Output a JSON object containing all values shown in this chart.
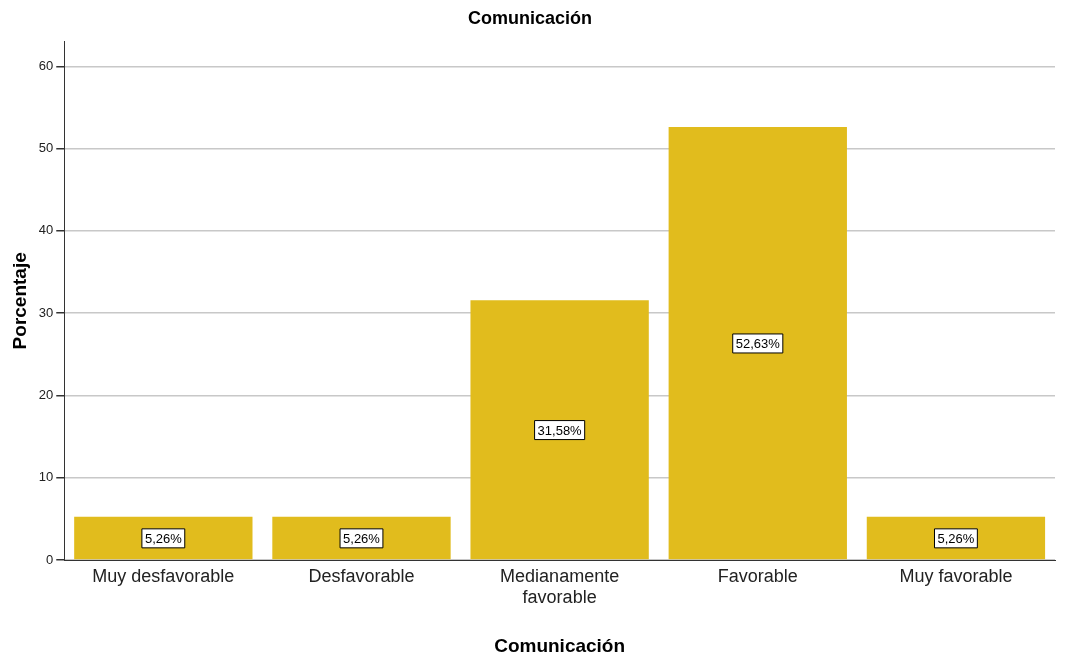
{
  "chart_data": {
    "type": "bar",
    "title": "Comunicación",
    "xlabel": "Comunicación",
    "ylabel": "Porcentaje",
    "categories": [
      "Muy desfavorable",
      "Desfavorable",
      "Medianamente favorable",
      "Favorable",
      "Muy favorable"
    ],
    "values": [
      5.26,
      5.26,
      31.58,
      52.63,
      5.26
    ],
    "value_labels": [
      "5,26%",
      "5,26%",
      "31,58%",
      "52,63%",
      "5,26%"
    ],
    "color": "#e1bc1d",
    "ylim": [
      0,
      63
    ],
    "yticks": [
      0,
      10,
      20,
      30,
      40,
      50,
      60
    ],
    "grid": "y",
    "legend": false
  }
}
